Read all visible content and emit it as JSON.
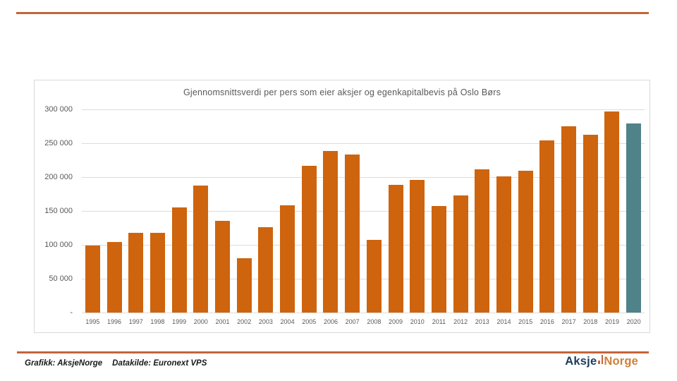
{
  "footer": {
    "credit": "Grafikk: AksjeNorge",
    "source": "Datakilde: Euronext VPS",
    "logo": {
      "part1": "Aksje",
      "part2": "Norge"
    }
  },
  "colors": {
    "bar_orange": "#ce640e",
    "bar_teal": "#4f8389",
    "divider_orange": "#c2653a",
    "axis_text_gray": "#595959"
  },
  "chart_data": {
    "type": "bar",
    "title": "Gjennomsnittsverdi per pers som eier aksjer og egenkapitalbevis på Oslo Børs",
    "categories": [
      "1995",
      "1996",
      "1997",
      "1998",
      "1999",
      "2000",
      "2001",
      "2002",
      "2003",
      "2004",
      "2005",
      "2006",
      "2007",
      "2008",
      "2009",
      "2010",
      "2011",
      "2012",
      "2013",
      "2014",
      "2015",
      "2016",
      "2017",
      "2018",
      "2019",
      "2020"
    ],
    "values": [
      99000,
      104000,
      118000,
      118000,
      155000,
      188000,
      135000,
      80000,
      126000,
      158000,
      217000,
      239000,
      233000,
      107000,
      189000,
      196000,
      157000,
      173000,
      211000,
      201000,
      209000,
      254000,
      275000,
      263000,
      297000,
      279000
    ],
    "xlabel": "",
    "ylabel": "",
    "ylim": [
      0,
      300000
    ],
    "ytick_step": 50000,
    "ytick_labels": [
      "-",
      "50 000",
      "100 000",
      "150 000",
      "200 000",
      "250 000",
      "300 000"
    ],
    "grid": true,
    "legend_position": "none",
    "bar_color": "#ce640e",
    "highlight_color": "#4f8389",
    "highlight_category": "2020"
  }
}
